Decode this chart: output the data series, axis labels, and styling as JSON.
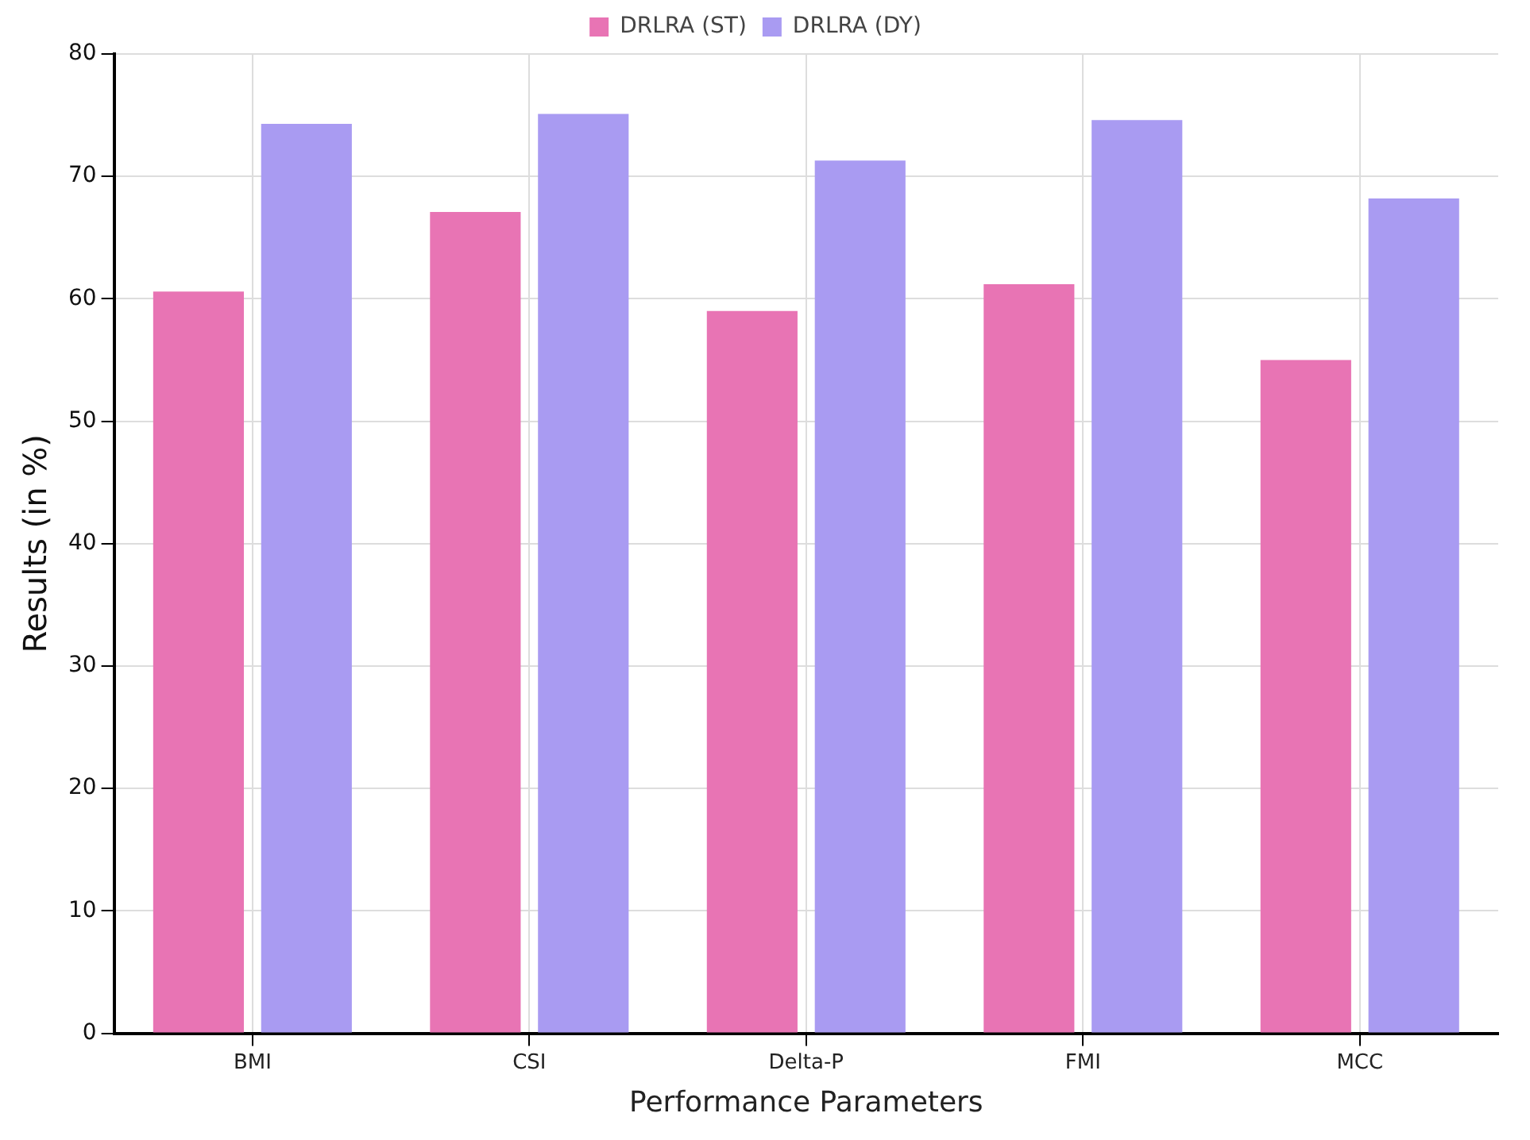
{
  "chart_data": {
    "type": "bar",
    "xlabel": "Performance Parameters",
    "ylabel": "Results (in %)",
    "categories": [
      "BMI",
      "CSI",
      "Delta-P",
      "FMI",
      "MCC"
    ],
    "series": [
      {
        "name": "DRLRA (ST)",
        "color": "#e874b4",
        "values": [
          60.6,
          67.1,
          59.0,
          61.2,
          55.0
        ]
      },
      {
        "name": "DRLRA (DY)",
        "color": "#a99bf2",
        "values": [
          74.3,
          75.1,
          71.3,
          74.6,
          68.2
        ]
      }
    ],
    "ylim": [
      0,
      80
    ],
    "yticks": [
      0,
      10,
      20,
      30,
      40,
      50,
      60,
      70,
      80
    ],
    "grid": true,
    "legend": "top"
  }
}
